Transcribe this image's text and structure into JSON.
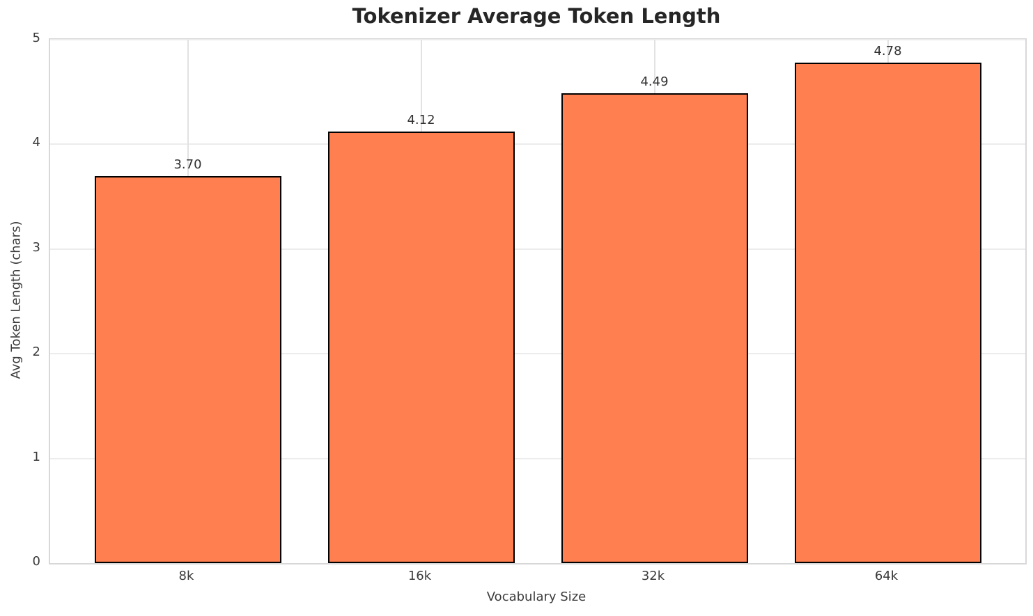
{
  "figure": {
    "title": "Tokenizer Average Token Length"
  },
  "chart_data": {
    "type": "bar",
    "title": "Tokenizer Average Token Length",
    "xlabel": "Vocabulary Size",
    "ylabel": "Avg Token Length (chars)",
    "categories": [
      "8k",
      "16k",
      "32k",
      "64k"
    ],
    "values": [
      3.7,
      4.12,
      4.49,
      4.78
    ],
    "value_labels": [
      "3.70",
      "4.12",
      "4.49",
      "4.78"
    ],
    "ylim": [
      0,
      5
    ],
    "yticks": [
      0,
      1,
      2,
      3,
      4,
      5
    ],
    "grid": true,
    "legend": false,
    "bar_color": "#FF7F50",
    "bar_edge_color": "#000000",
    "grid_color": "#ECECEC",
    "spine_color": "#D8D8D8",
    "tick_label_color": "#3B3B3B",
    "title_color": "#262626",
    "background_color": "#FFFFFF"
  }
}
